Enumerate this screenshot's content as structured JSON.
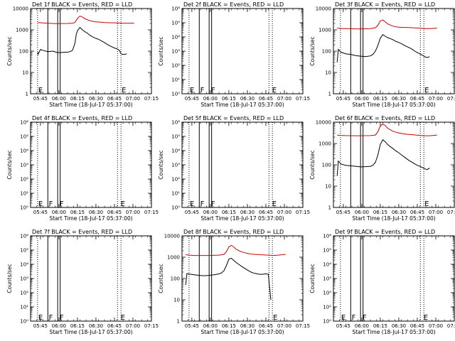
{
  "figure": {
    "ylabel": "Counts/sec",
    "xlabel": "Start Time (18-Jul-17 05:37:00)",
    "x_ticks": [
      "05:45",
      "06:00",
      "06:15",
      "06:30",
      "06:45",
      "07:00",
      "07:15"
    ]
  },
  "chart_data": [
    {
      "type": "line",
      "title": "Det 1f BLACK = Events, RED = LLD",
      "ylim": [
        1,
        10000
      ],
      "yscale": "log",
      "y_ticks": [
        "1",
        "10",
        "100",
        "1000",
        "10000"
      ],
      "flags": [
        {
          "t": 5.7,
          "label": "E"
        },
        {
          "t": 73.3,
          "label": "E"
        }
      ],
      "series": [
        {
          "name": "Events",
          "color": "#000000",
          "x": [
            5.7,
            6,
            8,
            10,
            14,
            18,
            22,
            26,
            30,
            32,
            34,
            36,
            37,
            38,
            40,
            42,
            44,
            46,
            48,
            50,
            52,
            54,
            56,
            58,
            60,
            62,
            64,
            66,
            68,
            70,
            72,
            73.3,
            75,
            77,
            78
          ],
          "y": [
            90,
            70,
            120,
            110,
            95,
            100,
            85,
            88,
            90,
            95,
            110,
            230,
            600,
            900,
            1300,
            1000,
            820,
            700,
            560,
            480,
            420,
            380,
            340,
            290,
            250,
            210,
            180,
            160,
            140,
            130,
            110,
            75,
            70,
            72,
            75
          ]
        },
        {
          "name": "LLD",
          "color": "#cc0000",
          "x": [
            6,
            10,
            20,
            30,
            34,
            36,
            38,
            40,
            42,
            44,
            48,
            52,
            56,
            60,
            64,
            70,
            74,
            78,
            84
          ],
          "y": [
            2200,
            2100,
            1950,
            2000,
            2050,
            2200,
            3400,
            4400,
            4000,
            3300,
            2700,
            2400,
            2300,
            2200,
            2150,
            2100,
            2050,
            2050,
            2050
          ]
        }
      ]
    },
    {
      "type": "line",
      "title": "Det 2f BLACK = Events, RED = LLD",
      "ylim": [
        1,
        1000000
      ],
      "yscale": "log",
      "y_ticks": [
        "10⁰",
        "10¹",
        "10²",
        "10³",
        "10⁴",
        "10⁵",
        "10⁶"
      ],
      "flags": [
        {
          "t": 5.7,
          "label": "E"
        },
        {
          "t": 14.2,
          "label": "F"
        },
        {
          "t": 23,
          "label": "F"
        },
        {
          "t": 72.5,
          "label": "E"
        }
      ],
      "series": []
    },
    {
      "type": "line",
      "title": "Det 3f BLACK = Events, RED = LLD",
      "ylim": [
        1,
        10000
      ],
      "yscale": "log",
      "y_ticks": [
        "1",
        "10",
        "100",
        "1000",
        "10000"
      ],
      "flags": [
        {
          "t": 73.3,
          "label": "E"
        }
      ],
      "series": [
        {
          "name": "Events",
          "color": "#000000",
          "x": [
            3,
            4,
            6,
            10,
            14,
            18,
            22,
            26,
            30,
            32,
            34,
            36,
            38,
            40,
            42,
            44,
            46,
            48,
            50,
            52,
            54,
            56,
            58,
            60,
            62,
            64,
            66,
            68,
            70,
            72,
            74,
            76,
            78
          ],
          "y": [
            30,
            120,
            90,
            75,
            70,
            62,
            58,
            55,
            60,
            70,
            100,
            180,
            400,
            600,
            500,
            430,
            390,
            350,
            300,
            270,
            240,
            210,
            180,
            160,
            140,
            120,
            100,
            85,
            75,
            65,
            55,
            50,
            55
          ]
        },
        {
          "name": "LLD",
          "color": "#cc0000",
          "x": [
            3,
            6,
            10,
            20,
            30,
            34,
            36,
            38,
            40,
            42,
            44,
            48,
            52,
            56,
            60,
            64,
            70,
            74,
            78,
            84
          ],
          "y": [
            1200,
            1150,
            1150,
            1100,
            1150,
            1250,
            1600,
            2600,
            2900,
            2400,
            1900,
            1500,
            1350,
            1300,
            1300,
            1250,
            1200,
            1150,
            1150,
            1200
          ]
        }
      ]
    },
    {
      "type": "line",
      "title": "Det 4f BLACK = Events, RED = LLD",
      "ylim": [
        1,
        1000000
      ],
      "yscale": "log",
      "y_ticks": [
        "10⁰",
        "10¹",
        "10²",
        "10³",
        "10⁴",
        "10⁵",
        "10⁶"
      ],
      "flags": [
        {
          "t": 5.7,
          "label": "E"
        },
        {
          "t": 14.2,
          "label": "F"
        },
        {
          "t": 23,
          "label": "F"
        },
        {
          "t": 72.5,
          "label": "E"
        }
      ],
      "series": []
    },
    {
      "type": "line",
      "title": "Det 5f BLACK = Events, RED = LLD",
      "ylim": [
        1,
        1000000
      ],
      "yscale": "log",
      "y_ticks": [
        "10⁰",
        "10¹",
        "10²",
        "10³",
        "10⁴",
        "10⁵",
        "10⁶"
      ],
      "flags": [
        {
          "t": 5.7,
          "label": "E"
        },
        {
          "t": 14.2,
          "label": "F"
        },
        {
          "t": 23,
          "label": "F"
        },
        {
          "t": 72.5,
          "label": "E"
        }
      ],
      "series": []
    },
    {
      "type": "line",
      "title": "Det 6f BLACK = Events, RED = LLD",
      "ylim": [
        1,
        10000
      ],
      "yscale": "log",
      "y_ticks": [
        "1",
        "10",
        "100",
        "1000",
        "10000"
      ],
      "flags": [
        {
          "t": 73.3,
          "label": "E"
        }
      ],
      "series": [
        {
          "name": "Events",
          "color": "#000000",
          "x": [
            3,
            4,
            6,
            10,
            14,
            18,
            22,
            26,
            30,
            32,
            34,
            36,
            38,
            40,
            42,
            44,
            46,
            48,
            50,
            52,
            54,
            56,
            58,
            60,
            62,
            64,
            66,
            68,
            70,
            72,
            74,
            76,
            78
          ],
          "y": [
            30,
            150,
            110,
            95,
            90,
            85,
            80,
            82,
            85,
            95,
            130,
            280,
            900,
            1500,
            1200,
            900,
            720,
            600,
            480,
            400,
            330,
            270,
            220,
            180,
            150,
            130,
            110,
            95,
            85,
            75,
            65,
            60,
            70
          ]
        },
        {
          "name": "LLD",
          "color": "#cc0000",
          "x": [
            3,
            6,
            10,
            20,
            30,
            34,
            36,
            38,
            40,
            42,
            44,
            48,
            52,
            56,
            60,
            64,
            70,
            74,
            78,
            84
          ],
          "y": [
            2500,
            2400,
            2350,
            2300,
            2350,
            2500,
            3500,
            6500,
            8200,
            7000,
            5200,
            3800,
            3200,
            2900,
            2700,
            2600,
            2400,
            2300,
            2300,
            2500
          ]
        }
      ]
    },
    {
      "type": "line",
      "title": "Det 7f BLACK = Events, RED = LLD",
      "ylim": [
        1,
        1000000
      ],
      "yscale": "log",
      "y_ticks": [
        "10⁰",
        "10¹",
        "10²",
        "10³",
        "10⁴",
        "10⁵",
        "10⁶"
      ],
      "flags": [
        {
          "t": 5.7,
          "label": "E"
        },
        {
          "t": 14.2,
          "label": "F"
        },
        {
          "t": 23,
          "label": "F"
        },
        {
          "t": 72.5,
          "label": "E"
        }
      ],
      "series": []
    },
    {
      "type": "line",
      "title": "Det 8f BLACK = Events, RED = LLD",
      "ylim": [
        1,
        10000
      ],
      "yscale": "log",
      "y_ticks": [
        "1",
        "10",
        "100",
        "1000",
        "10000"
      ],
      "flags": [
        {
          "t": 73.3,
          "label": "E"
        }
      ],
      "series": [
        {
          "name": "Events",
          "color": "#000000",
          "x": [
            3,
            4,
            6,
            10,
            14,
            18,
            22,
            26,
            30,
            32,
            34,
            36,
            38,
            40,
            42,
            44,
            46,
            48,
            50,
            52,
            54,
            56,
            58,
            60,
            62,
            64,
            66,
            68,
            70,
            71,
            72
          ],
          "y": [
            50,
            170,
            160,
            150,
            140,
            135,
            140,
            150,
            165,
            180,
            230,
            400,
            800,
            900,
            700,
            560,
            460,
            380,
            320,
            270,
            230,
            200,
            180,
            170,
            160,
            155,
            160,
            165,
            160,
            40,
            10
          ]
        },
        {
          "name": "LLD",
          "color": "#cc0000",
          "x": [
            3,
            6,
            10,
            20,
            30,
            34,
            36,
            38,
            40,
            42,
            44,
            48,
            52,
            56,
            60,
            64,
            70,
            74,
            78,
            84
          ],
          "y": [
            1300,
            1250,
            1200,
            1200,
            1250,
            1350,
            1800,
            3000,
            3600,
            3000,
            2300,
            1800,
            1550,
            1400,
            1350,
            1300,
            1250,
            1200,
            1250,
            1350
          ]
        }
      ]
    },
    {
      "type": "line",
      "title": "Det 9f BLACK = Events, RED = LLD",
      "ylim": [
        1,
        1000000
      ],
      "yscale": "log",
      "y_ticks": [
        "10⁰",
        "10¹",
        "10²",
        "10³",
        "10⁴",
        "10⁵",
        "10⁶"
      ],
      "flags": [
        {
          "t": 5.7,
          "label": "E"
        },
        {
          "t": 14.2,
          "label": "F"
        },
        {
          "t": 23,
          "label": "F"
        },
        {
          "t": 72.5,
          "label": "E"
        }
      ],
      "series": []
    }
  ]
}
